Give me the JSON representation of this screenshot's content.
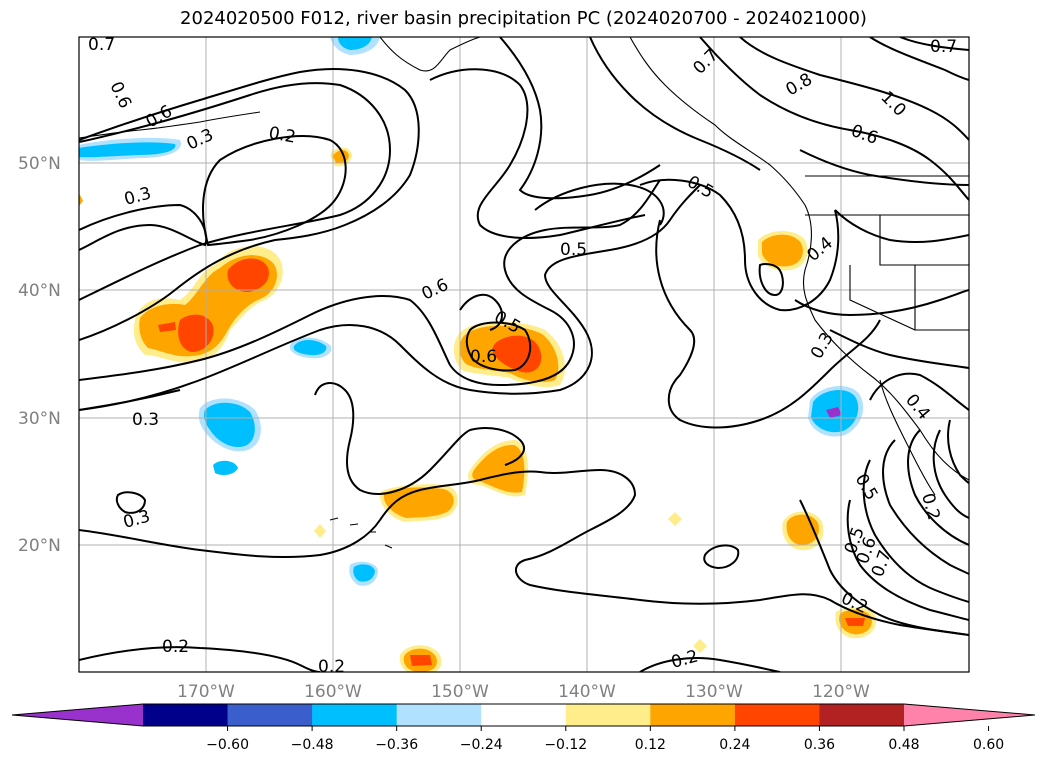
{
  "title": "2024020500 F012, river basin precipitation PC (2024020700 - 2024021000)",
  "map": {
    "lon_range": [
      -180,
      -110
    ],
    "lat_range": [
      10,
      60
    ],
    "lat_labels": [
      "50°N",
      "40°N",
      "30°N",
      "20°N"
    ],
    "lon_labels": [
      "170°W",
      "160°W",
      "150°W",
      "140°W",
      "130°W",
      "120°W"
    ],
    "contour_labels": [
      "0.7",
      "0.6",
      "0.6",
      "0.3",
      "0.2",
      "0.3",
      "0.6",
      "0.5",
      "0.5",
      "0.6",
      "0.3",
      "0.3",
      "0.2",
      "0.2",
      "0.2",
      "0.7",
      "0.8",
      "1.0",
      "0.6",
      "0.5",
      "0.4",
      "0.3",
      "0.4",
      "0.5",
      "0.2",
      "0.5",
      "0.6",
      "0.7",
      "0.2",
      "0.7"
    ]
  },
  "colorbar": {
    "ticks": [
      "−0.60",
      "−0.48",
      "−0.36",
      "−0.24",
      "−0.12",
      "0.12",
      "0.24",
      "0.36",
      "0.48",
      "0.60"
    ],
    "colors": [
      "#9932cc",
      "#00008b",
      "#3a5fcd",
      "#00bfff",
      "#b0e2ff",
      "#ffffff",
      "#ffec8b",
      "#ffa500",
      "#ff4500",
      "#b22222",
      "#ff82ab"
    ]
  }
}
